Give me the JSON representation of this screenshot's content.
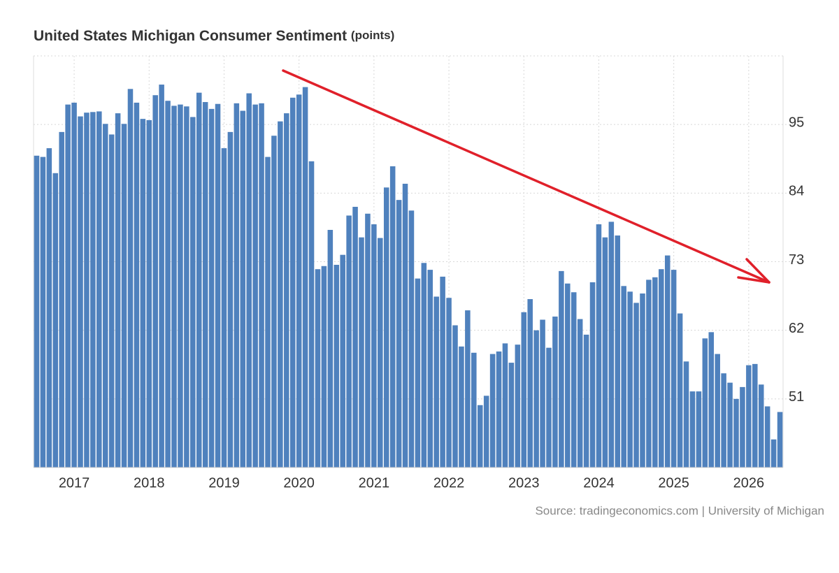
{
  "chart_data": {
    "type": "bar",
    "title": "United States Michigan Consumer Sentiment",
    "unit": "(points)",
    "source": "Source: tradingeconomics.com | University of Michigan",
    "color": "#4f81bd",
    "grid": true,
    "ylim": [
      40,
      106
    ],
    "yticks": [
      51,
      62,
      73,
      84,
      95
    ],
    "categories": [
      null,
      null,
      null,
      null,
      null,
      null,
      "2017",
      null,
      null,
      null,
      null,
      null,
      null,
      null,
      null,
      null,
      null,
      null,
      "2018",
      null,
      null,
      null,
      null,
      null,
      null,
      null,
      null,
      null,
      null,
      null,
      "2019",
      null,
      null,
      null,
      null,
      null,
      null,
      null,
      null,
      null,
      null,
      null,
      "2020",
      null,
      null,
      null,
      null,
      null,
      null,
      null,
      null,
      null,
      null,
      null,
      "2021",
      null,
      null,
      null,
      null,
      null,
      null,
      null,
      null,
      null,
      null,
      null,
      "2022",
      null,
      null,
      null,
      null,
      null,
      null,
      null,
      null,
      null,
      null,
      null,
      "2023",
      null,
      null,
      null,
      null,
      null,
      null,
      null,
      null,
      null,
      null,
      null,
      "2024",
      null,
      null,
      null,
      null,
      null,
      null,
      null,
      null,
      null,
      null,
      null,
      "2025",
      null,
      null,
      null,
      null,
      null,
      null,
      null,
      null,
      null,
      null,
      null,
      "2026",
      null,
      null,
      null,
      null,
      null
    ],
    "values": [
      90.0,
      89.8,
      91.2,
      87.2,
      93.8,
      98.2,
      98.5,
      96.3,
      96.9,
      97.0,
      97.1,
      95.1,
      93.4,
      96.8,
      95.1,
      100.7,
      98.5,
      95.9,
      95.7,
      99.7,
      101.4,
      98.8,
      98.0,
      98.2,
      97.9,
      96.2,
      100.1,
      98.6,
      97.5,
      98.3,
      91.2,
      93.8,
      98.4,
      97.2,
      100.0,
      98.2,
      98.4,
      89.8,
      93.2,
      95.5,
      96.8,
      99.3,
      99.8,
      101.0,
      89.1,
      71.8,
      72.3,
      78.1,
      72.5,
      74.1,
      80.4,
      81.8,
      76.9,
      80.7,
      79.0,
      76.8,
      84.9,
      88.3,
      82.9,
      85.5,
      81.2,
      70.3,
      72.8,
      71.7,
      67.4,
      70.6,
      67.2,
      62.8,
      59.4,
      65.2,
      58.4,
      50.0,
      51.5,
      58.2,
      58.6,
      59.9,
      56.8,
      59.7,
      64.9,
      67.0,
      62.0,
      63.7,
      59.2,
      64.2,
      71.5,
      69.5,
      68.1,
      63.8,
      61.3,
      69.7,
      79.0,
      76.9,
      79.4,
      77.2,
      69.1,
      68.2,
      66.4,
      67.9,
      70.1,
      70.5,
      71.8,
      74.0,
      71.7,
      64.7,
      57.0,
      52.2,
      52.2,
      60.7,
      61.7,
      58.2,
      55.1,
      53.6,
      51.0,
      52.9,
      56.4,
      56.6,
      53.3,
      49.8,
      44.5,
      48.9
    ]
  }
}
